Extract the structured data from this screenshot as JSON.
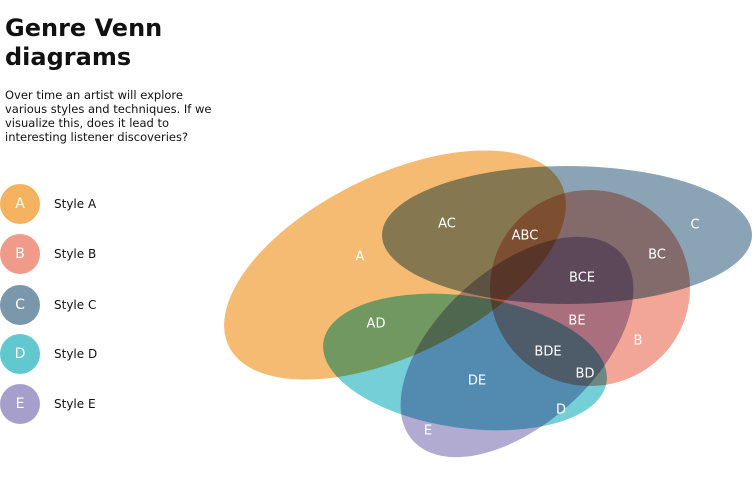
{
  "title": "Genre Venn diagrams",
  "description": "Over time an artist will explore various styles and techniques.  If we visualize this, does it lead to interesting listener discoveries?",
  "legend": [
    {
      "letter": "A",
      "label": "Style A",
      "color": "#f5b25f"
    },
    {
      "letter": "B",
      "label": "Style B",
      "color": "#f09a8a"
    },
    {
      "letter": "C",
      "label": "Style C",
      "color": "#7a97ab"
    },
    {
      "letter": "D",
      "label": "Style D",
      "color": "#62c8d0"
    },
    {
      "letter": "E",
      "label": "Style E",
      "color": "#a79fcb"
    }
  ],
  "venn": {
    "sets": [
      {
        "id": "A",
        "color": "#f5b25f"
      },
      {
        "id": "B",
        "color": "#f09a8a"
      },
      {
        "id": "C",
        "color": "#7a97ab"
      },
      {
        "id": "D",
        "color": "#62c8d0"
      },
      {
        "id": "E",
        "color": "#a79fcb"
      }
    ],
    "region_labels": [
      "A",
      "AC",
      "ABC",
      "C",
      "BC",
      "BCE",
      "BE",
      "B",
      "AD",
      "BDE",
      "BD",
      "DE",
      "D",
      "E"
    ]
  }
}
